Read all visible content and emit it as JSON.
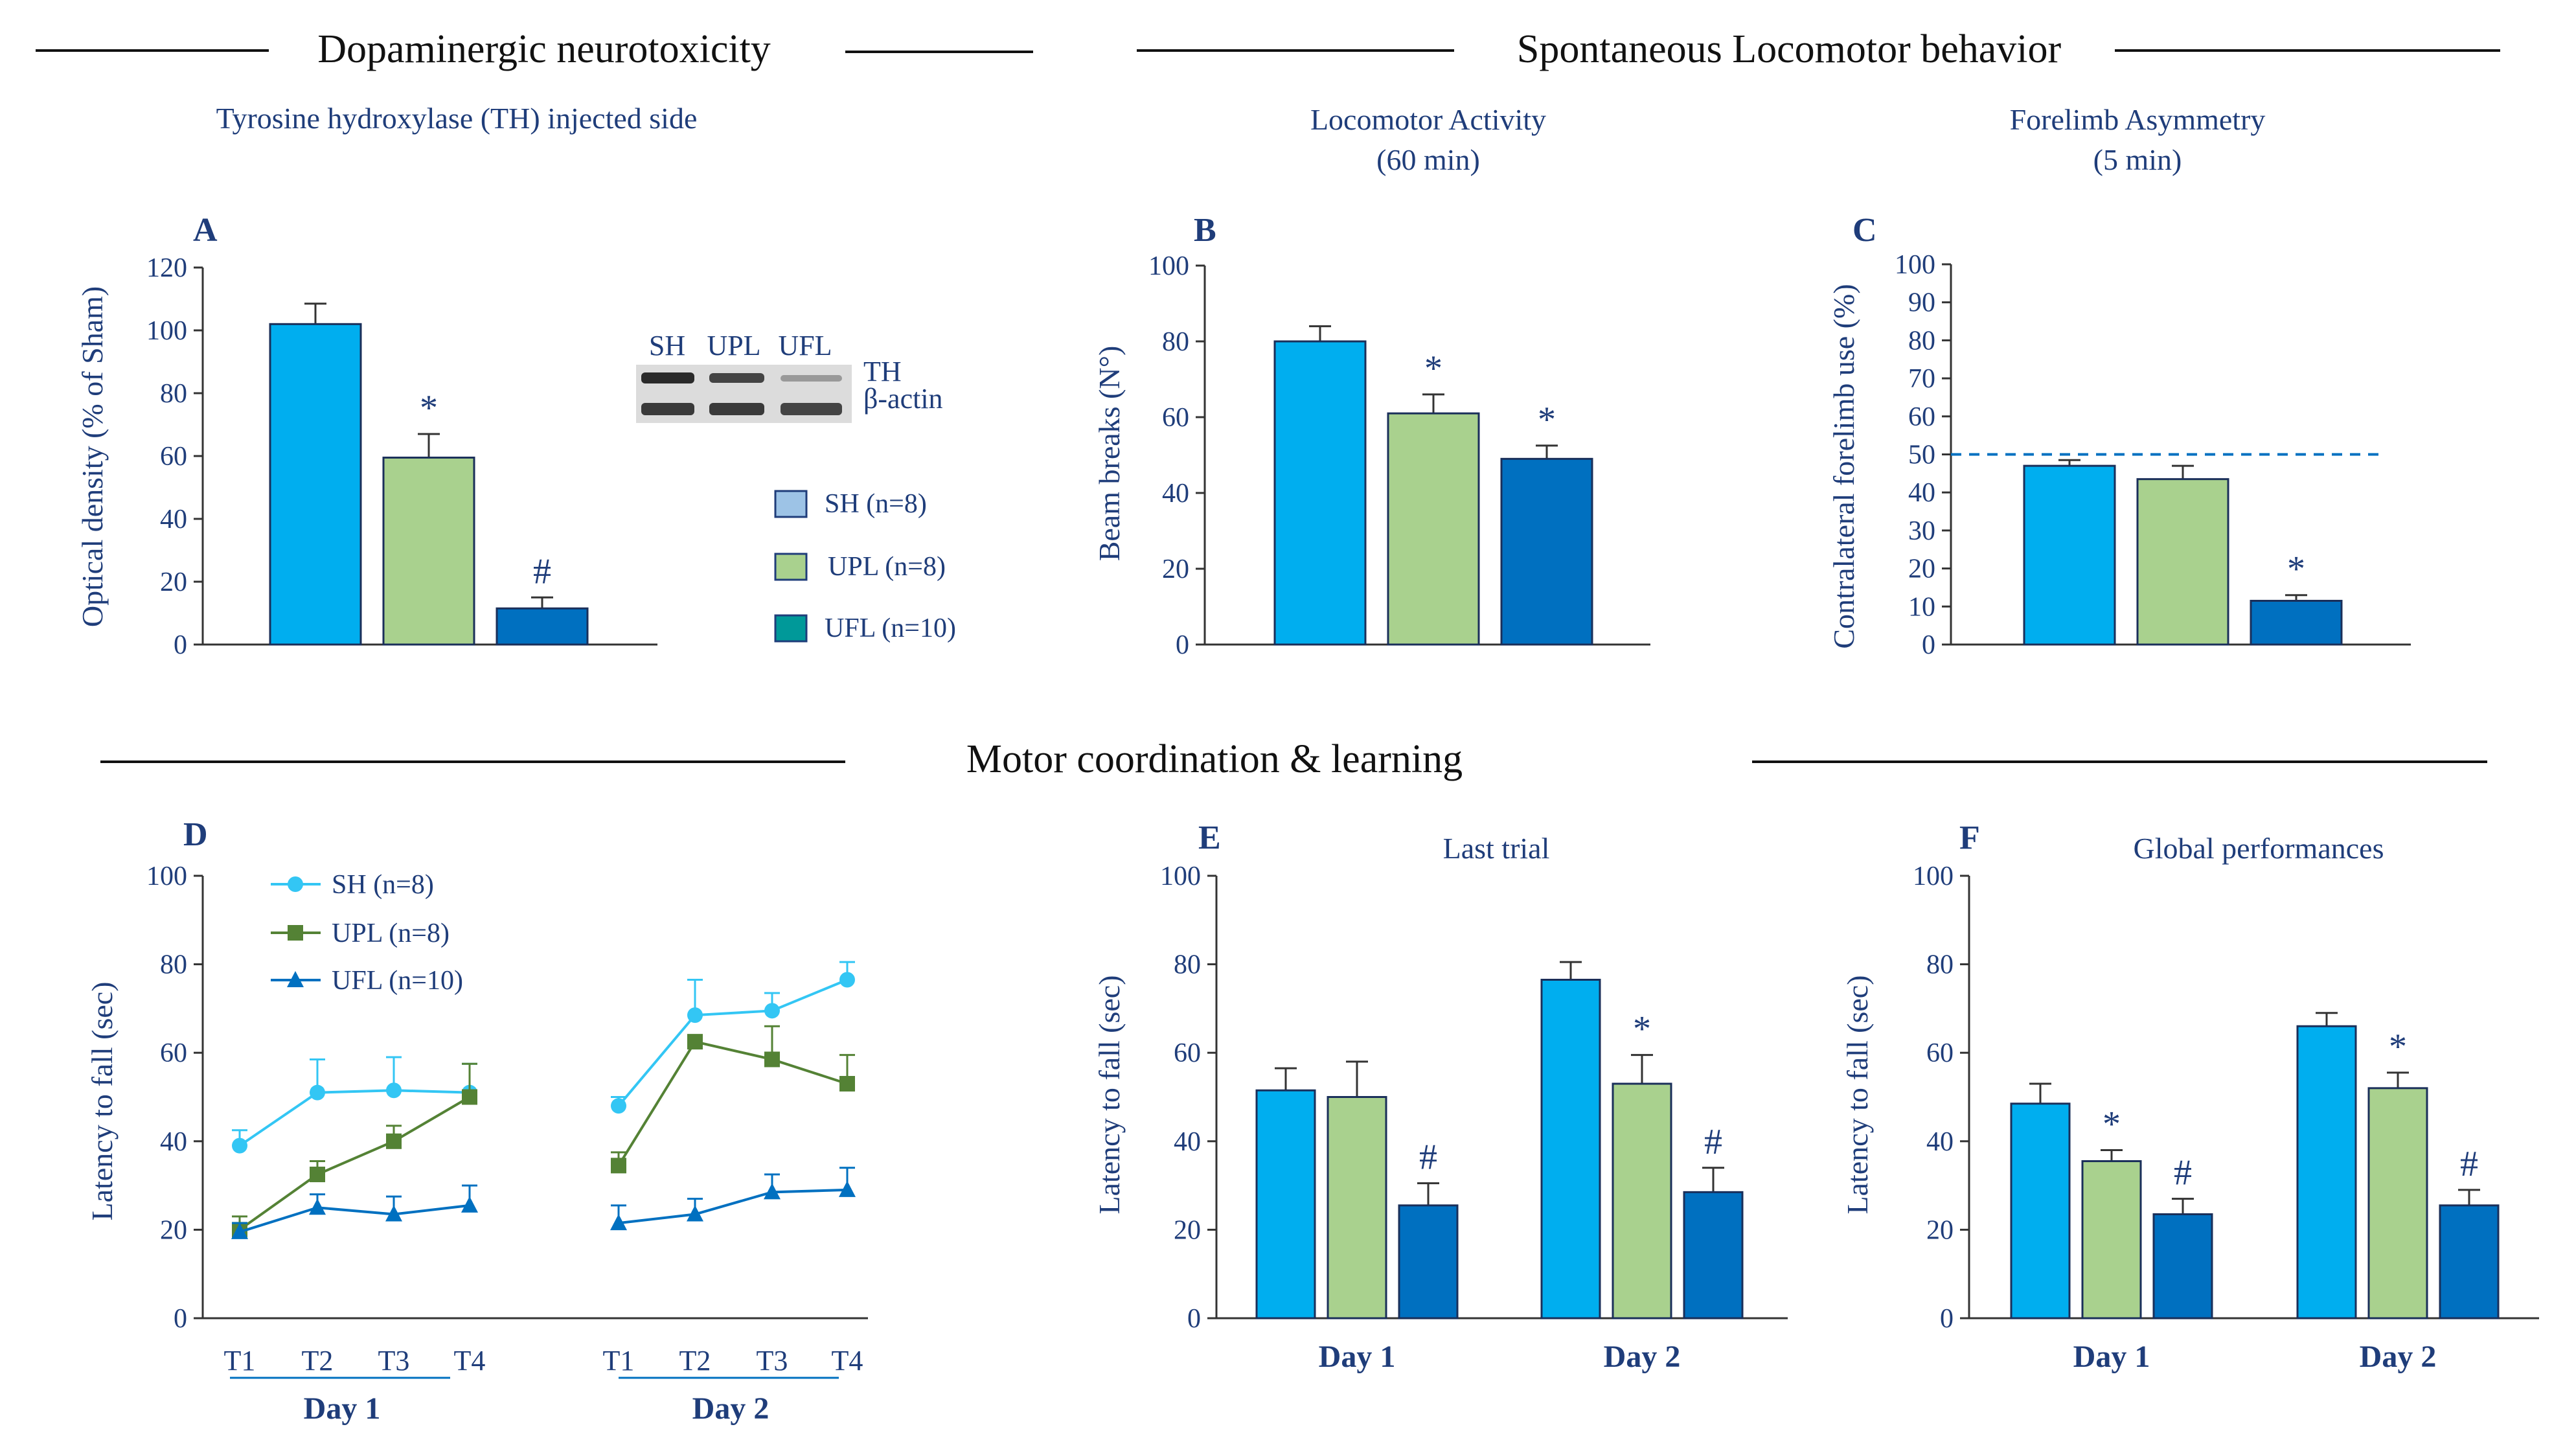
{
  "colors": {
    "sh": "#00AEEF",
    "upl": "#A9D18E",
    "ufl": "#0070C0",
    "upl_line": "#548235",
    "sh_line": "#33C6F4",
    "legend_sh": "#9DC3E6",
    "legend_ufl": "#009999",
    "text": "#1F3D7A",
    "axis": "#333333"
  },
  "sections": {
    "dopaminergic": "Dopaminergic neurotoxicity",
    "locomotor": "Spontaneous Locomotor behavior",
    "motor": "Motor coordination & learning"
  },
  "chart_data": [
    {
      "id": "A",
      "type": "bar",
      "letter": "A",
      "title": "Tyrosine hydroxylase (TH) injected side",
      "ylabel": "Optical density (% of Sham)",
      "ylim": [
        0,
        120
      ],
      "yticks": [
        "0",
        "20",
        "40",
        "60",
        "80",
        "100",
        "120"
      ],
      "categories": [
        "SH",
        "UPL",
        "UFL"
      ],
      "values": [
        102,
        59.5,
        11.5
      ],
      "errors": [
        6.5,
        7.5,
        3.5
      ],
      "annotations": [
        "",
        "*",
        "#"
      ],
      "legend": [
        "SH (n=8)",
        "UPL (n=8)",
        "UFL (n=10)"
      ],
      "blot": {
        "lanes": [
          "SH",
          "UPL",
          "UFL"
        ],
        "rows": [
          "TH",
          "β-actin"
        ]
      }
    },
    {
      "id": "B",
      "type": "bar",
      "letter": "B",
      "title": [
        "Locomotor Activity",
        "(60 min)"
      ],
      "ylabel": "Beam breaks (N°)",
      "ylim": [
        0,
        100
      ],
      "yticks": [
        "0",
        "20",
        "40",
        "60",
        "80",
        "100"
      ],
      "categories": [
        "SH",
        "UPL",
        "UFL"
      ],
      "values": [
        80,
        61,
        49
      ],
      "errors": [
        4,
        5,
        3.5
      ],
      "annotations": [
        "",
        "*",
        "*"
      ]
    },
    {
      "id": "C",
      "type": "bar",
      "letter": "C",
      "title": [
        "Forelimb Asymmetry",
        "(5 min)"
      ],
      "ylabel": "Contralateral forelimb use (%)",
      "ylim": [
        0,
        100
      ],
      "yticks": [
        "0",
        "10",
        "20",
        "30",
        "40",
        "50",
        "60",
        "70",
        "80",
        "90",
        "100"
      ],
      "categories": [
        "SH",
        "UPL",
        "UFL"
      ],
      "values": [
        47,
        43.5,
        11.5
      ],
      "errors": [
        1.5,
        3.5,
        1.5
      ],
      "annotations": [
        "",
        "",
        "*"
      ],
      "reference_line": 50
    },
    {
      "id": "D",
      "type": "line",
      "letter": "D",
      "ylabel": "Latency to fall (sec)",
      "ylim": [
        0,
        100
      ],
      "yticks": [
        "0",
        "20",
        "40",
        "60",
        "80",
        "100"
      ],
      "x_day1": [
        "T1",
        "T2",
        "T3",
        "T4"
      ],
      "x_day2": [
        "T1",
        "T2",
        "T3",
        "T4"
      ],
      "groups": [
        "Day 1",
        "Day 2"
      ],
      "series": [
        {
          "name": "SH (n=8)",
          "day1": [
            39,
            51,
            51.5,
            51
          ],
          "day2": [
            48,
            68.5,
            69.5,
            76.5
          ],
          "err1": [
            3.5,
            7.5,
            7.5,
            6.5
          ],
          "err2": [
            2,
            8,
            4,
            4
          ]
        },
        {
          "name": "UPL (n=8)",
          "day1": [
            20,
            32.5,
            40,
            50
          ],
          "day2": [
            34.5,
            62.5,
            58.5,
            53
          ],
          "err1": [
            3,
            3,
            3.5,
            7.5
          ],
          "err2": [
            3,
            0,
            7.5,
            6.5
          ]
        },
        {
          "name": "UFL (n=10)",
          "day1": [
            19.5,
            25,
            23.5,
            25.5
          ],
          "day2": [
            21.5,
            23.5,
            28.5,
            29
          ],
          "err1": [
            2,
            3,
            4,
            4.5
          ],
          "err2": [
            4,
            3.5,
            4,
            5
          ]
        }
      ]
    },
    {
      "id": "E",
      "type": "bar",
      "letter": "E",
      "title": "Last trial",
      "ylabel": "Latency to fall (sec)",
      "ylim": [
        0,
        100
      ],
      "yticks": [
        "0",
        "20",
        "40",
        "60",
        "80",
        "100"
      ],
      "categories": [
        "Day 1",
        "Day 2"
      ],
      "series": [
        {
          "name": "SH",
          "values": [
            51.5,
            76.5
          ],
          "errors": [
            5,
            4
          ]
        },
        {
          "name": "UPL",
          "values": [
            50,
            53
          ],
          "errors": [
            8,
            6.5
          ]
        },
        {
          "name": "UFL",
          "values": [
            25.5,
            28.5
          ],
          "errors": [
            5,
            5.5
          ]
        }
      ],
      "annotations": [
        [
          "",
          "",
          "#"
        ],
        [
          "",
          "*",
          "#"
        ]
      ]
    },
    {
      "id": "F",
      "type": "bar",
      "letter": "F",
      "title": "Global performances",
      "ylabel": "Latency to fall (sec)",
      "ylim": [
        0,
        100
      ],
      "yticks": [
        "0",
        "20",
        "40",
        "60",
        "80",
        "100"
      ],
      "categories": [
        "Day 1",
        "Day 2"
      ],
      "series": [
        {
          "name": "SH",
          "values": [
            48.5,
            66
          ],
          "errors": [
            4.5,
            3
          ]
        },
        {
          "name": "UPL",
          "values": [
            35.5,
            52
          ],
          "errors": [
            2.5,
            3.5
          ]
        },
        {
          "name": "UFL",
          "values": [
            23.5,
            25.5
          ],
          "errors": [
            3.5,
            3.5
          ]
        }
      ],
      "annotations": [
        [
          "",
          "*",
          "#"
        ],
        [
          "",
          "*",
          "#"
        ]
      ]
    }
  ]
}
